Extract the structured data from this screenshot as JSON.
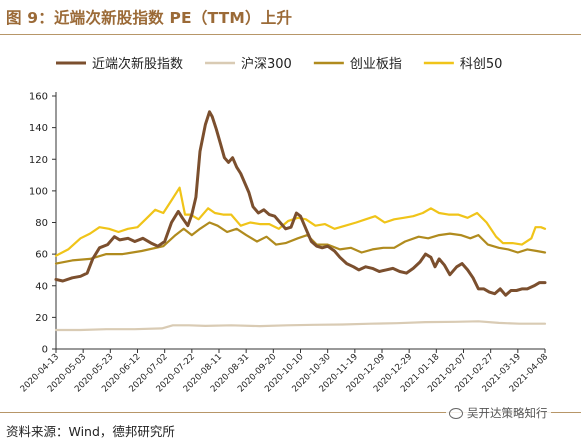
{
  "header": {
    "title": "图 9：近端次新股指数 PE（TTM）上升"
  },
  "footer": {
    "source": "资料来源：Wind，德邦研究所",
    "watermark": "吴开达策略知行"
  },
  "chart_data": {
    "type": "line",
    "title": "图 9：近端次新股指数 PE（TTM）上升",
    "xlabel": "",
    "ylabel": "",
    "ylim": [
      0,
      160
    ],
    "yticks": [
      0,
      20,
      40,
      60,
      80,
      100,
      120,
      140,
      160
    ],
    "xlim": [
      "2020-04-13",
      "2021-04-08"
    ],
    "x_tick_labels": [
      "2020-04-13",
      "2020-05-03",
      "2020-05-23",
      "2020-06-12",
      "2020-07-02",
      "2020-07-22",
      "2020-08-11",
      "2020-08-31",
      "2020-09-20",
      "2020-10-10",
      "2020-10-30",
      "2020-11-19",
      "2020-12-09",
      "2020-12-29",
      "2021-01-18",
      "2021-02-07",
      "2021-02-27",
      "2021-03-19",
      "2021-04-08"
    ],
    "grid": false,
    "legend_position": "top",
    "series": [
      {
        "name": "近端次新股指数",
        "color": "#7b4f2e",
        "points": [
          [
            "2020-04-13",
            44
          ],
          [
            "2020-04-18",
            43
          ],
          [
            "2020-04-25",
            45
          ],
          [
            "2020-05-01",
            46
          ],
          [
            "2020-05-06",
            48
          ],
          [
            "2020-05-10",
            57
          ],
          [
            "2020-05-15",
            64
          ],
          [
            "2020-05-21",
            66
          ],
          [
            "2020-05-26",
            71
          ],
          [
            "2020-05-30",
            69
          ],
          [
            "2020-06-05",
            70
          ],
          [
            "2020-06-10",
            68
          ],
          [
            "2020-06-16",
            70
          ],
          [
            "2020-06-22",
            67
          ],
          [
            "2020-06-27",
            65
          ],
          [
            "2020-07-02",
            68
          ],
          [
            "2020-07-07",
            80
          ],
          [
            "2020-07-12",
            87
          ],
          [
            "2020-07-15",
            83
          ],
          [
            "2020-07-19",
            78
          ],
          [
            "2020-07-22",
            85
          ],
          [
            "2020-07-25",
            96
          ],
          [
            "2020-07-28",
            125
          ],
          [
            "2020-08-01",
            142
          ],
          [
            "2020-08-04",
            150
          ],
          [
            "2020-08-06",
            147
          ],
          [
            "2020-08-09",
            139
          ],
          [
            "2020-08-12",
            130
          ],
          [
            "2020-08-15",
            121
          ],
          [
            "2020-08-18",
            118
          ],
          [
            "2020-08-21",
            121
          ],
          [
            "2020-08-24",
            115
          ],
          [
            "2020-08-27",
            111
          ],
          [
            "2020-08-30",
            105
          ],
          [
            "2020-09-02",
            99
          ],
          [
            "2020-09-05",
            90
          ],
          [
            "2020-09-09",
            86
          ],
          [
            "2020-09-13",
            88
          ],
          [
            "2020-09-17",
            85
          ],
          [
            "2020-09-21",
            84
          ],
          [
            "2020-09-25",
            80
          ],
          [
            "2020-09-29",
            76
          ],
          [
            "2020-10-03",
            77
          ],
          [
            "2020-10-07",
            86
          ],
          [
            "2020-10-10",
            84
          ],
          [
            "2020-10-14",
            76
          ],
          [
            "2020-10-18",
            68
          ],
          [
            "2020-10-22",
            65
          ],
          [
            "2020-10-26",
            64
          ],
          [
            "2020-10-30",
            65
          ],
          [
            "2020-11-04",
            62
          ],
          [
            "2020-11-08",
            58
          ],
          [
            "2020-11-13",
            54
          ],
          [
            "2020-11-18",
            52
          ],
          [
            "2020-11-22",
            50
          ],
          [
            "2020-11-27",
            52
          ],
          [
            "2020-12-02",
            51
          ],
          [
            "2020-12-07",
            49
          ],
          [
            "2020-12-12",
            50
          ],
          [
            "2020-12-17",
            51
          ],
          [
            "2020-12-22",
            49
          ],
          [
            "2020-12-27",
            48
          ],
          [
            "2021-01-01",
            51
          ],
          [
            "2021-01-06",
            55
          ],
          [
            "2021-01-10",
            60
          ],
          [
            "2021-01-14",
            58
          ],
          [
            "2021-01-17",
            52
          ],
          [
            "2021-01-20",
            57
          ],
          [
            "2021-01-24",
            53
          ],
          [
            "2021-01-28",
            47
          ],
          [
            "2021-02-02",
            52
          ],
          [
            "2021-02-06",
            54
          ],
          [
            "2021-02-10",
            50
          ],
          [
            "2021-02-14",
            45
          ],
          [
            "2021-02-18",
            38
          ],
          [
            "2021-02-22",
            38
          ],
          [
            "2021-02-26",
            36
          ],
          [
            "2021-03-02",
            35
          ],
          [
            "2021-03-06",
            38
          ],
          [
            "2021-03-10",
            34
          ],
          [
            "2021-03-14",
            37
          ],
          [
            "2021-03-18",
            37
          ],
          [
            "2021-03-22",
            38
          ],
          [
            "2021-03-26",
            38
          ],
          [
            "2021-03-31",
            40
          ],
          [
            "2021-04-04",
            42
          ],
          [
            "2021-04-08",
            42
          ]
        ]
      },
      {
        "name": "沪深300",
        "color": "#d9cbb4",
        "points": [
          [
            "2020-04-13",
            12
          ],
          [
            "2020-05-01",
            12
          ],
          [
            "2020-05-20",
            12.5
          ],
          [
            "2020-06-10",
            12.5
          ],
          [
            "2020-06-30",
            13
          ],
          [
            "2020-07-08",
            15
          ],
          [
            "2020-07-20",
            15
          ],
          [
            "2020-08-01",
            14.6
          ],
          [
            "2020-08-20",
            15
          ],
          [
            "2020-09-10",
            14.5
          ],
          [
            "2020-09-30",
            15
          ],
          [
            "2020-10-20",
            15.3
          ],
          [
            "2020-11-10",
            15.5
          ],
          [
            "2020-12-01",
            16
          ],
          [
            "2020-12-20",
            16.3
          ],
          [
            "2021-01-10",
            17
          ],
          [
            "2021-02-01",
            17.2
          ],
          [
            "2021-02-18",
            17.5
          ],
          [
            "2021-03-05",
            16.5
          ],
          [
            "2021-03-20",
            16
          ],
          [
            "2021-04-08",
            16
          ]
        ]
      },
      {
        "name": "创业板指",
        "color": "#b08b1e",
        "points": [
          [
            "2020-04-13",
            54
          ],
          [
            "2020-04-25",
            56
          ],
          [
            "2020-05-08",
            57
          ],
          [
            "2020-05-20",
            60
          ],
          [
            "2020-06-01",
            60
          ],
          [
            "2020-06-15",
            62
          ],
          [
            "2020-07-01",
            65
          ],
          [
            "2020-07-10",
            72
          ],
          [
            "2020-07-16",
            76
          ],
          [
            "2020-07-22",
            72
          ],
          [
            "2020-07-28",
            76
          ],
          [
            "2020-08-04",
            80
          ],
          [
            "2020-08-10",
            78
          ],
          [
            "2020-08-17",
            74
          ],
          [
            "2020-08-24",
            76
          ],
          [
            "2020-08-31",
            72
          ],
          [
            "2020-09-08",
            68
          ],
          [
            "2020-09-15",
            71
          ],
          [
            "2020-09-22",
            66
          ],
          [
            "2020-09-29",
            67
          ],
          [
            "2020-10-08",
            70
          ],
          [
            "2020-10-15",
            72
          ],
          [
            "2020-10-22",
            66
          ],
          [
            "2020-10-30",
            66
          ],
          [
            "2020-11-08",
            63
          ],
          [
            "2020-11-16",
            64
          ],
          [
            "2020-11-24",
            61
          ],
          [
            "2020-12-02",
            63
          ],
          [
            "2020-12-10",
            64
          ],
          [
            "2020-12-18",
            64
          ],
          [
            "2020-12-26",
            68
          ],
          [
            "2021-01-05",
            71
          ],
          [
            "2021-01-12",
            70
          ],
          [
            "2021-01-20",
            72
          ],
          [
            "2021-01-28",
            73
          ],
          [
            "2021-02-05",
            72
          ],
          [
            "2021-02-12",
            70
          ],
          [
            "2021-02-18",
            72
          ],
          [
            "2021-02-25",
            66
          ],
          [
            "2021-03-05",
            64
          ],
          [
            "2021-03-12",
            63
          ],
          [
            "2021-03-19",
            61
          ],
          [
            "2021-03-26",
            63
          ],
          [
            "2021-04-02",
            62
          ],
          [
            "2021-04-08",
            61
          ]
        ]
      },
      {
        "name": "科创50",
        "color": "#f0c419",
        "points": [
          [
            "2020-04-13",
            59
          ],
          [
            "2020-04-22",
            63
          ],
          [
            "2020-05-01",
            70
          ],
          [
            "2020-05-08",
            73
          ],
          [
            "2020-05-15",
            77
          ],
          [
            "2020-05-22",
            76
          ],
          [
            "2020-05-29",
            74
          ],
          [
            "2020-06-05",
            76
          ],
          [
            "2020-06-12",
            77
          ],
          [
            "2020-06-18",
            82
          ],
          [
            "2020-06-25",
            88
          ],
          [
            "2020-07-01",
            86
          ],
          [
            "2020-07-07",
            94
          ],
          [
            "2020-07-13",
            102
          ],
          [
            "2020-07-17",
            85
          ],
          [
            "2020-07-21",
            85
          ],
          [
            "2020-07-27",
            82
          ],
          [
            "2020-08-03",
            89
          ],
          [
            "2020-08-08",
            86
          ],
          [
            "2020-08-14",
            85
          ],
          [
            "2020-08-20",
            85
          ],
          [
            "2020-08-27",
            78
          ],
          [
            "2020-09-03",
            80
          ],
          [
            "2020-09-10",
            79
          ],
          [
            "2020-09-17",
            79
          ],
          [
            "2020-09-24",
            76
          ],
          [
            "2020-10-01",
            81
          ],
          [
            "2020-10-08",
            83
          ],
          [
            "2020-10-14",
            82
          ],
          [
            "2020-10-21",
            78
          ],
          [
            "2020-10-28",
            79
          ],
          [
            "2020-11-04",
            76
          ],
          [
            "2020-11-12",
            78
          ],
          [
            "2020-11-20",
            80
          ],
          [
            "2020-11-27",
            82
          ],
          [
            "2020-12-04",
            84
          ],
          [
            "2020-12-11",
            80
          ],
          [
            "2020-12-18",
            82
          ],
          [
            "2020-12-25",
            83
          ],
          [
            "2021-01-01",
            84
          ],
          [
            "2021-01-08",
            86
          ],
          [
            "2021-01-14",
            89
          ],
          [
            "2021-01-20",
            86
          ],
          [
            "2021-01-27",
            85
          ],
          [
            "2021-02-03",
            85
          ],
          [
            "2021-02-10",
            83
          ],
          [
            "2021-02-17",
            86
          ],
          [
            "2021-02-24",
            80
          ],
          [
            "2021-03-03",
            71
          ],
          [
            "2021-03-08",
            67
          ],
          [
            "2021-03-15",
            67
          ],
          [
            "2021-03-22",
            66
          ],
          [
            "2021-03-29",
            70
          ],
          [
            "2021-04-01",
            77
          ],
          [
            "2021-04-05",
            77
          ],
          [
            "2021-04-08",
            76
          ]
        ]
      }
    ]
  }
}
